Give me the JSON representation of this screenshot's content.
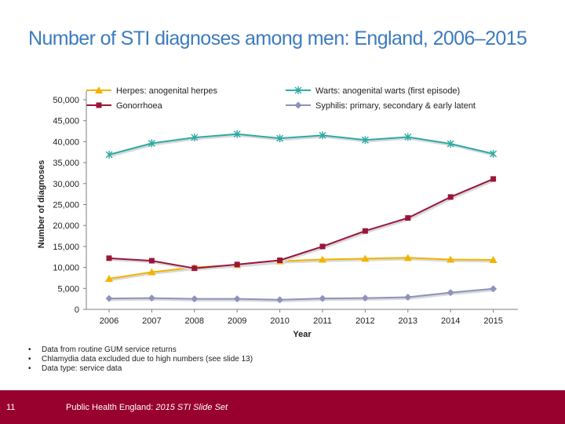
{
  "title": "Number of STI diagnoses among men: England, 2006–2015",
  "notes": [
    "Data from routine GUM service returns",
    "Chlamydia data excluded due to high numbers (see slide 13)",
    "Data type: service data"
  ],
  "footer": {
    "slide_number": "11",
    "org": "Public Health England: ",
    "set": "2015 STI Slide Set",
    "color": "#98002e"
  },
  "chart_data": {
    "type": "line",
    "title": "Number of STI diagnoses among men: England, 2006–2015",
    "xlabel": "Year",
    "ylabel": "Number of diagnoses",
    "x": [
      "2006",
      "2007",
      "2008",
      "2009",
      "2010",
      "2011",
      "2012",
      "2013",
      "2014",
      "2015"
    ],
    "ylim": [
      0,
      50000
    ],
    "y_ticks": [
      0,
      5000,
      10000,
      15000,
      20000,
      25000,
      30000,
      35000,
      40000,
      45000,
      50000
    ],
    "y_tick_labels": [
      "0",
      "5,000",
      "10,000",
      "15,000",
      "20,000",
      "25,000",
      "30,000",
      "35,000",
      "40,000",
      "45,000",
      "50,000"
    ],
    "grid": false,
    "legend_position": "top",
    "series": [
      {
        "name": "Herpes: anogenital herpes",
        "color": "#f2b400",
        "marker": "triangle",
        "values": [
          7300,
          8900,
          10000,
          10600,
          11500,
          11900,
          12100,
          12300,
          11900,
          11800
        ]
      },
      {
        "name": "Gonorrhoea",
        "color": "#99163a",
        "marker": "square",
        "values": [
          12200,
          11600,
          9800,
          10700,
          11700,
          15000,
          18700,
          21800,
          26800,
          31100
        ]
      },
      {
        "name": "Warts: anogenital warts (first episode)",
        "color": "#2eaaa4",
        "marker": "star",
        "values": [
          36900,
          39600,
          41000,
          41800,
          40800,
          41500,
          40400,
          41100,
          39500,
          37100
        ]
      },
      {
        "name": "Syphilis: primary, secondary & early latent",
        "color": "#8f92bd",
        "marker": "diamond",
        "values": [
          2600,
          2700,
          2500,
          2500,
          2300,
          2600,
          2700,
          2900,
          4000,
          4900
        ]
      }
    ]
  }
}
